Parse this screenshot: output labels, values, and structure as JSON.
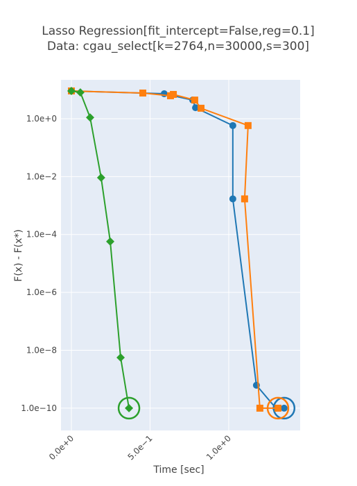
{
  "chart_data": {
    "type": "line",
    "title": "Lasso Regression[fit_intercept=False,reg=0.1]",
    "subtitle": "Data: cgau_select[k=2764,n=30000,s=300]",
    "x_label": "Time [sec]",
    "y_label": "F(x) - F(x*)",
    "log_y": true,
    "grid": true,
    "xlim": [
      -0.066,
      1.454
    ],
    "ylim": [
      1.7e-11,
      22
    ],
    "xticks": [
      {
        "value": 0,
        "label": "0.0e+0"
      },
      {
        "value": 0.5,
        "label": "5.0e−1"
      },
      {
        "value": 1.0,
        "label": "1.0e+0"
      }
    ],
    "yticks": [
      {
        "value": 1,
        "label": "1.0e+0"
      },
      {
        "value": 0.01,
        "label": "1.0e−2"
      },
      {
        "value": 0.0001,
        "label": "1.0e−4"
      },
      {
        "value": 1e-06,
        "label": "1.0e−6"
      },
      {
        "value": 1e-08,
        "label": "1.0e−8"
      },
      {
        "value": 1e-10,
        "label": "1.0e−10"
      }
    ],
    "series": [
      {
        "color": "#1f77b4",
        "marker": "circle",
        "x": [
          0,
          0.59,
          0.771,
          0.789,
          1.026,
          1.026,
          1.176,
          1.3,
          1.352
        ],
        "values": [
          9.1,
          7.3,
          4.4,
          2.4,
          0.58,
          0.0017,
          6.2e-10,
          1e-10,
          1e-10
        ]
      },
      {
        "color": "#ff7f0e",
        "marker": "square",
        "x": [
          0,
          0.454,
          0.63,
          0.648,
          0.784,
          0.824,
          1.123,
          1.101,
          1.198,
          1.313
        ],
        "values": [
          9.1,
          7.7,
          6.2,
          6.9,
          4.4,
          2.3,
          0.58,
          0.0017,
          1e-10,
          1e-10
        ]
      },
      {
        "color": "#2ca02c",
        "marker": "diamond",
        "x": [
          0,
          0.057,
          0.119,
          0.189,
          0.247,
          0.313,
          0.366
        ],
        "values": [
          9.1,
          8.1,
          1.1,
          0.0092,
          5.7e-05,
          5.6e-09,
          1e-10
        ]
      }
    ]
  }
}
